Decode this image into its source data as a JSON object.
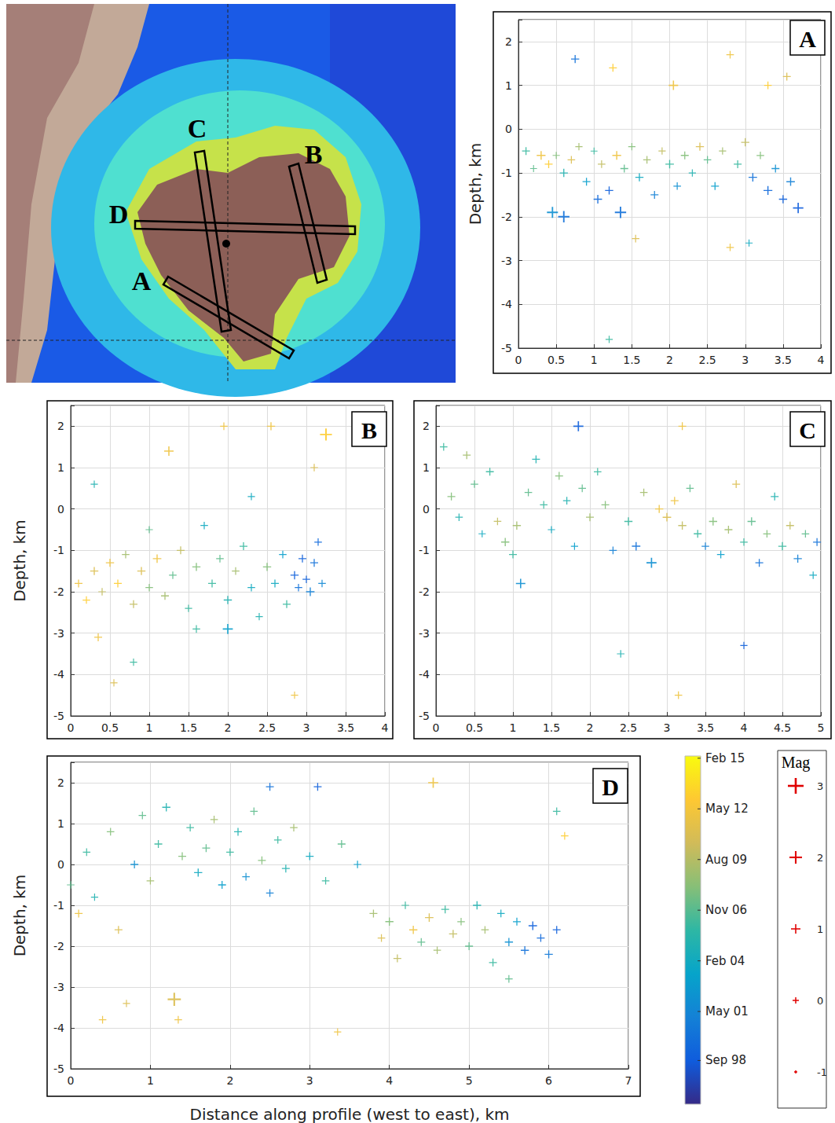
{
  "chart_data": [
    {
      "type": "scatter",
      "title": "A",
      "marker": "plus",
      "grid": true,
      "xlim": [
        0,
        4
      ],
      "xticks": [
        0,
        0.5,
        1,
        1.5,
        2,
        2.5,
        3,
        3.5,
        4
      ],
      "ylim": [
        -5,
        2.5
      ],
      "yticks": [
        -5,
        -4,
        -3,
        -2,
        -1,
        0,
        1,
        2
      ],
      "y_label": "Depth, km",
      "x": [
        0.1,
        0.2,
        0.3,
        0.4,
        0.45,
        0.5,
        0.6,
        0.7,
        0.75,
        0.8,
        0.9,
        1.0,
        1.05,
        1.1,
        1.2,
        1.25,
        1.3,
        1.35,
        1.4,
        1.5,
        1.55,
        1.6,
        1.7,
        1.8,
        1.9,
        2.0,
        2.05,
        2.1,
        2.2,
        2.3,
        2.4,
        2.5,
        2.6,
        2.7,
        2.8,
        2.9,
        3.0,
        3.05,
        3.1,
        3.2,
        3.3,
        3.4,
        3.5,
        3.6,
        3.7,
        3.55,
        1.2,
        2.8,
        3.3,
        0.6
      ],
      "y": [
        -0.5,
        -0.9,
        -0.6,
        -0.8,
        -1.9,
        -0.6,
        -1.0,
        -0.7,
        1.6,
        -0.4,
        -1.2,
        -0.5,
        -1.6,
        -0.8,
        -1.4,
        1.4,
        -0.6,
        -1.9,
        -0.9,
        -0.4,
        -2.5,
        -1.1,
        -0.7,
        -1.5,
        -0.5,
        -0.8,
        1.0,
        -1.3,
        -0.6,
        -1.0,
        -0.4,
        -0.7,
        -1.3,
        -0.5,
        -2.7,
        -0.8,
        -0.3,
        -2.6,
        -1.1,
        -0.6,
        -1.4,
        -0.9,
        -1.6,
        -1.2,
        -1.8,
        1.2,
        -4.8,
        1.7,
        1.0,
        -2.0
      ],
      "date": [
        2006,
        2007,
        2012,
        2013,
        2002,
        2008,
        2005,
        2011,
        2000,
        2009,
        2003,
        2006,
        1999.5,
        2010,
        1999,
        2013,
        2012,
        2000,
        2007,
        2008,
        2011,
        2004,
        2009,
        2001,
        2010,
        2006,
        2012,
        2002,
        2008,
        2005,
        2011,
        2007,
        2003,
        2009,
        2012,
        2006,
        2010,
        2004,
        2000,
        2008,
        1999.5,
        2002,
        1999,
        2001,
        1998.8,
        2011,
        2006,
        2012,
        2013,
        2000
      ],
      "magnitude": [
        0.5,
        0.2,
        0.8,
        0.5,
        1.5,
        0.3,
        0.6,
        0.4,
        0.6,
        0.3,
        0.5,
        0.2,
        0.7,
        0.4,
        0.6,
        0.5,
        0.8,
        1.6,
        0.5,
        0.3,
        0.4,
        0.6,
        0.4,
        0.5,
        0.3,
        0.7,
        1.0,
        0.4,
        0.5,
        0.3,
        0.6,
        0.4,
        0.5,
        0.3,
        0.4,
        0.5,
        0.6,
        0.3,
        0.7,
        0.4,
        0.8,
        0.5,
        0.6,
        0.7,
        1.3,
        0.5,
        0.3,
        0.4,
        0.4,
        1.6
      ]
    },
    {
      "type": "scatter",
      "title": "B",
      "marker": "plus",
      "grid": true,
      "xlim": [
        0,
        4
      ],
      "xticks": [
        0,
        0.5,
        1,
        1.5,
        2,
        2.5,
        3,
        3.5,
        4
      ],
      "ylim": [
        -5,
        2.5
      ],
      "yticks": [
        -5,
        -4,
        -3,
        -2,
        -1,
        0,
        1,
        2
      ],
      "y_label": "Depth, km",
      "x": [
        0.1,
        0.2,
        0.3,
        0.35,
        0.4,
        0.5,
        0.55,
        0.6,
        0.7,
        0.8,
        0.9,
        1.0,
        1.1,
        1.2,
        1.25,
        1.3,
        1.4,
        1.5,
        1.6,
        1.7,
        1.8,
        1.9,
        2.0,
        2.1,
        2.2,
        2.3,
        2.4,
        2.5,
        2.55,
        2.6,
        2.7,
        2.75,
        2.85,
        2.9,
        2.95,
        3.0,
        3.05,
        3.1,
        3.15,
        3.2,
        2.85,
        3.25,
        1.95,
        0.3,
        2.0,
        1.6,
        0.8,
        3.1,
        1.0,
        2.3
      ],
      "y": [
        -1.8,
        -2.2,
        -1.5,
        -3.1,
        -2.0,
        -1.3,
        -4.2,
        -1.8,
        -1.1,
        -2.3,
        -1.5,
        -1.9,
        -1.2,
        -2.1,
        1.4,
        -1.6,
        -1.0,
        -2.4,
        -1.4,
        -0.4,
        -1.8,
        -1.2,
        -2.2,
        -1.5,
        -0.9,
        -1.9,
        -2.6,
        -1.4,
        2.0,
        -1.8,
        -1.1,
        -2.3,
        -1.6,
        -1.9,
        -1.2,
        -1.7,
        -2.0,
        -1.3,
        -0.8,
        -1.8,
        -4.5,
        1.8,
        2.0,
        0.6,
        -2.9,
        -2.9,
        -3.7,
        1.0,
        -0.5,
        0.3
      ],
      "date": [
        2012,
        2013,
        2011,
        2012,
        2010,
        2012,
        2011,
        2013,
        2009,
        2010,
        2011,
        2008,
        2012,
        2009,
        2012,
        2007,
        2010,
        2006,
        2008,
        2004,
        2006,
        2007,
        2005,
        2009,
        2006,
        2004,
        2005,
        2008,
        2012,
        2004,
        2003,
        2006,
        1999,
        2000,
        1999,
        1998.9,
        2001,
        2000,
        1999.5,
        2001.5,
        2012,
        2013,
        2012,
        2005,
        2003,
        2006,
        2006,
        2011,
        2007,
        2004
      ],
      "magnitude": [
        0.5,
        0.4,
        0.6,
        0.5,
        0.4,
        0.6,
        0.3,
        0.5,
        0.4,
        0.5,
        0.6,
        0.4,
        0.7,
        0.5,
        1.0,
        0.4,
        0.5,
        0.3,
        0.6,
        0.4,
        0.5,
        0.4,
        0.6,
        0.4,
        0.5,
        0.4,
        0.3,
        0.6,
        0.6,
        0.5,
        0.4,
        0.5,
        0.6,
        0.4,
        0.5,
        0.4,
        0.7,
        0.5,
        0.4,
        0.4,
        0.3,
        1.8,
        0.4,
        0.3,
        1.2,
        0.4,
        0.3,
        0.4,
        0.3,
        0.3
      ]
    },
    {
      "type": "scatter",
      "title": "C",
      "marker": "plus",
      "grid": true,
      "xlim": [
        0,
        5
      ],
      "xticks": [
        0,
        0.5,
        1,
        1.5,
        2,
        2.5,
        3,
        3.5,
        4,
        4.5,
        5
      ],
      "ylim": [
        -5,
        2.5
      ],
      "yticks": [
        -5,
        -4,
        -3,
        -2,
        -1,
        0,
        1,
        2
      ],
      "x": [
        0.1,
        0.2,
        0.3,
        0.4,
        0.5,
        0.6,
        0.7,
        0.8,
        0.9,
        1.0,
        1.05,
        1.1,
        1.2,
        1.3,
        1.4,
        1.5,
        1.6,
        1.7,
        1.8,
        1.85,
        1.9,
        2.0,
        2.1,
        2.2,
        2.3,
        2.4,
        2.5,
        2.6,
        2.7,
        2.8,
        2.9,
        3.0,
        3.1,
        3.15,
        3.2,
        3.3,
        3.4,
        3.5,
        3.6,
        3.7,
        3.8,
        3.9,
        4.0,
        4.1,
        4.2,
        4.3,
        4.4,
        4.5,
        4.6,
        4.7,
        4.8,
        4.9,
        4.95,
        4.0,
        3.2
      ],
      "y": [
        1.5,
        0.3,
        -0.2,
        1.3,
        0.6,
        -0.6,
        0.9,
        -0.3,
        -0.8,
        -1.1,
        -0.4,
        -1.8,
        0.4,
        1.2,
        0.1,
        -0.5,
        0.8,
        0.2,
        -0.9,
        2.0,
        0.5,
        -0.2,
        0.9,
        0.1,
        -1.0,
        -3.5,
        -0.3,
        -0.9,
        0.4,
        -1.3,
        0.0,
        -0.2,
        0.2,
        -4.5,
        -0.4,
        0.5,
        -0.6,
        -0.9,
        -0.3,
        -1.1,
        -0.5,
        0.6,
        -0.8,
        -0.3,
        -1.3,
        -0.6,
        0.3,
        -0.9,
        -0.4,
        -1.2,
        -0.6,
        -1.6,
        -0.8,
        -3.3,
        2.0
      ],
      "date": [
        2006,
        2008,
        2005,
        2009,
        2007,
        2004,
        2006,
        2010,
        2008,
        2006,
        2009,
        2002,
        2007,
        2005,
        2006,
        2004,
        2008,
        2005,
        2003,
        1999,
        2007,
        2009,
        2006,
        2008,
        2001,
        2005,
        2006,
        2000,
        2009,
        2002,
        2012,
        2011,
        2012,
        2012,
        2010,
        2007,
        2006,
        2001,
        2008,
        2003,
        2009,
        2011,
        2006,
        2007,
        2000,
        2008,
        2005,
        2006,
        2010,
        2001,
        2007,
        2004,
        2000,
        1999,
        2012
      ],
      "magnitude": [
        0.4,
        0.5,
        0.4,
        0.5,
        0.4,
        0.3,
        0.5,
        0.4,
        0.6,
        0.5,
        0.6,
        1.0,
        0.4,
        0.5,
        0.4,
        0.3,
        0.5,
        0.4,
        0.3,
        1.2,
        0.4,
        0.5,
        0.4,
        0.5,
        0.4,
        0.4,
        0.6,
        0.7,
        0.4,
        1.2,
        0.6,
        0.7,
        0.5,
        0.4,
        0.6,
        0.4,
        0.5,
        0.4,
        0.6,
        0.4,
        0.5,
        0.5,
        0.4,
        0.6,
        0.5,
        0.4,
        0.5,
        0.6,
        0.5,
        0.6,
        0.4,
        0.4,
        0.5,
        0.3,
        0.5
      ]
    },
    {
      "type": "scatter",
      "title": "D",
      "marker": "plus",
      "grid": true,
      "xlim": [
        0,
        7
      ],
      "xticks": [
        0,
        1,
        2,
        3,
        4,
        5,
        6,
        7
      ],
      "ylim": [
        -5,
        2.5
      ],
      "yticks": [
        -5,
        -4,
        -3,
        -2,
        -1,
        0,
        1,
        2
      ],
      "x_label": "Distance along profile (west to east), km",
      "y_label": "Depth, km",
      "x": [
        0.0,
        0.1,
        0.2,
        0.3,
        0.4,
        0.5,
        0.6,
        0.7,
        0.8,
        0.9,
        1.0,
        1.1,
        1.2,
        1.3,
        1.35,
        1.4,
        1.5,
        1.6,
        1.7,
        1.8,
        1.9,
        2.0,
        2.1,
        2.2,
        2.3,
        2.4,
        2.5,
        2.6,
        2.7,
        2.8,
        3.0,
        3.1,
        3.2,
        3.35,
        3.4,
        3.6,
        3.8,
        3.9,
        4.0,
        4.1,
        4.2,
        4.3,
        4.4,
        4.5,
        4.55,
        4.6,
        4.7,
        4.8,
        4.9,
        5.0,
        5.1,
        5.2,
        5.3,
        5.4,
        5.5,
        5.6,
        5.7,
        5.8,
        5.9,
        6.0,
        6.1,
        6.2,
        5.5,
        6.1,
        2.5
      ],
      "y": [
        -0.5,
        -1.2,
        0.3,
        -0.8,
        -3.8,
        0.8,
        -1.6,
        -3.4,
        0.0,
        1.2,
        -0.4,
        0.5,
        1.4,
        -3.3,
        -3.8,
        0.2,
        0.9,
        -0.2,
        0.4,
        1.1,
        -0.5,
        0.3,
        0.8,
        -0.3,
        1.3,
        0.1,
        -0.7,
        0.6,
        -0.1,
        0.9,
        0.2,
        1.9,
        -0.4,
        -4.1,
        0.5,
        0.0,
        -1.2,
        -1.8,
        -1.4,
        -2.3,
        -1.0,
        -1.6,
        -1.9,
        -1.3,
        2.0,
        -2.1,
        -1.1,
        -1.7,
        -1.4,
        -2.0,
        -1.0,
        -1.6,
        -2.4,
        -1.2,
        -1.9,
        -1.4,
        -2.1,
        -1.5,
        -1.8,
        -2.2,
        -1.6,
        0.7,
        -2.8,
        1.3,
        1.9
      ],
      "date": [
        2007,
        2012,
        2006,
        2005,
        2012,
        2008,
        2011,
        2011,
        2002,
        2007,
        2009,
        2006,
        2005,
        2011,
        2012,
        2008,
        2006,
        2004,
        2007,
        2009,
        2003,
        2006,
        2005,
        2002,
        2007,
        2008,
        2001,
        2006,
        2005,
        2009,
        2004,
        1999,
        2006,
        2012,
        2007,
        2003,
        2009,
        2011,
        2008,
        2010,
        2006,
        2012,
        2007,
        2011,
        2012,
        2009,
        2006,
        2010,
        2008,
        2007,
        2005,
        2009,
        2006,
        2004,
        2002,
        2003,
        2000,
        1999,
        1999.5,
        2000.5,
        1999,
        2013,
        2007,
        2006,
        2000
      ],
      "magnitude": [
        0.4,
        0.5,
        0.4,
        0.3,
        0.4,
        0.4,
        0.5,
        0.3,
        0.5,
        0.4,
        0.4,
        0.5,
        0.6,
        2.2,
        0.4,
        0.5,
        0.4,
        0.6,
        0.5,
        0.4,
        0.5,
        0.4,
        0.5,
        0.4,
        0.4,
        0.5,
        0.4,
        0.4,
        0.5,
        0.4,
        0.5,
        0.5,
        0.4,
        0.3,
        0.5,
        0.4,
        0.5,
        0.4,
        0.6,
        0.5,
        0.4,
        0.6,
        0.5,
        0.7,
        1.2,
        0.4,
        0.5,
        0.6,
        0.4,
        0.5,
        0.6,
        0.4,
        0.5,
        0.4,
        0.6,
        0.5,
        0.6,
        0.7,
        0.5,
        0.6,
        0.5,
        0.4,
        0.4,
        0.4,
        0.5
      ]
    }
  ],
  "color_scale": {
    "range": [
      1996.3,
      2015.2
    ],
    "ticks": [
      {
        "value": 2015.08,
        "label": "Feb 15"
      },
      {
        "value": 2012.33,
        "label": "May 12"
      },
      {
        "value": 2009.58,
        "label": "Aug 09"
      },
      {
        "value": 2006.83,
        "label": "Nov 06"
      },
      {
        "value": 2004.08,
        "label": "Feb 04"
      },
      {
        "value": 2001.33,
        "label": "May 01"
      },
      {
        "value": 1998.67,
        "label": "Sep 98"
      }
    ]
  },
  "magnitude_legend": {
    "title": "Mag",
    "values": [
      3,
      2,
      1,
      0,
      -1
    ]
  },
  "map": {
    "profiles": [
      "A",
      "B",
      "C",
      "D"
    ]
  }
}
